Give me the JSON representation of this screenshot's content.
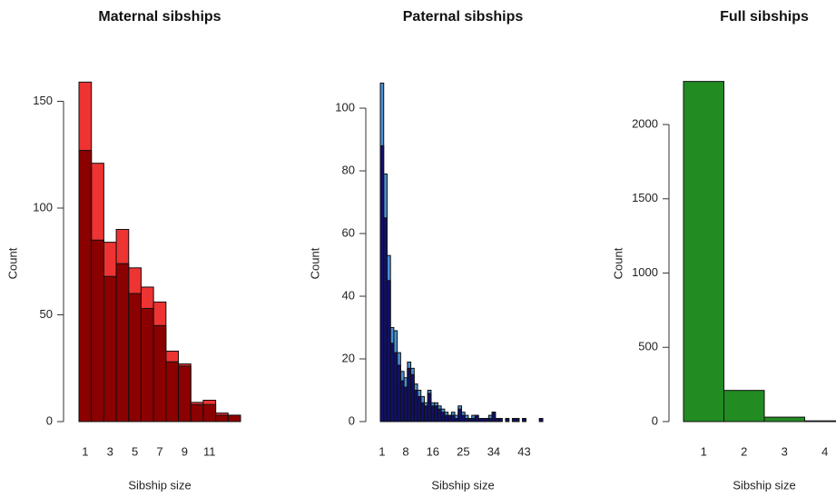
{
  "chart_data": [
    {
      "type": "bar",
      "title": "Maternal sibships",
      "x_label": "Sibship size",
      "y_label": "Count",
      "categories": [
        "1",
        null,
        "3",
        null,
        "5",
        null,
        "7",
        null,
        "9",
        null,
        "11",
        null,
        null
      ],
      "series": [
        {
          "color": "#ee3333",
          "values": [
            159,
            121,
            84,
            90,
            72,
            63,
            56,
            33,
            27,
            9,
            10,
            4,
            3
          ]
        },
        {
          "color": "#8b0000",
          "values": [
            127,
            85,
            68,
            74,
            60,
            53,
            45,
            28,
            26,
            8,
            8,
            3,
            3
          ]
        }
      ],
      "ylim": [
        0,
        160
      ],
      "yticks": [
        0,
        50,
        100,
        150
      ]
    },
    {
      "type": "bar",
      "title": "Paternal sibships",
      "x_label": "Sibship size",
      "y_label": "Count",
      "categories": [
        "1",
        null,
        null,
        null,
        null,
        null,
        null,
        "8",
        null,
        null,
        null,
        null,
        null,
        null,
        null,
        "16",
        null,
        null,
        null,
        null,
        null,
        null,
        null,
        null,
        "25",
        null,
        null,
        null,
        null,
        null,
        null,
        null,
        null,
        "34",
        null,
        null,
        null,
        null,
        null,
        null,
        null,
        null,
        "43",
        null,
        null,
        null,
        null,
        null
      ],
      "series": [
        {
          "color": "#4a90d0",
          "values": [
            108,
            79,
            53,
            30,
            29,
            22,
            16,
            14,
            19,
            17,
            12,
            10,
            8,
            6,
            10,
            6,
            6,
            5,
            4,
            3,
            2,
            3,
            2,
            5,
            3,
            2,
            1,
            2,
            2,
            1,
            1,
            1,
            2,
            3,
            1,
            1,
            0,
            1,
            0,
            1,
            1,
            0,
            1,
            0,
            0,
            0,
            0,
            1
          ]
        },
        {
          "color": "#10106a",
          "values": [
            88,
            65,
            45,
            25,
            22,
            18,
            13,
            11,
            17,
            15,
            10,
            8,
            6,
            5,
            9,
            5,
            5,
            4,
            3,
            2,
            2,
            2,
            1,
            4,
            2,
            1,
            1,
            1,
            2,
            1,
            1,
            1,
            1,
            3,
            1,
            1,
            0,
            1,
            0,
            1,
            1,
            0,
            1,
            0,
            0,
            0,
            0,
            1
          ]
        }
      ],
      "ylim": [
        0,
        109
      ],
      "yticks": [
        0,
        20,
        40,
        60,
        80,
        100
      ]
    },
    {
      "type": "bar",
      "title": "Full sibships",
      "x_label": "Sibship size",
      "y_label": "Count",
      "categories": [
        "1",
        "2",
        "3",
        "4"
      ],
      "series": [
        {
          "color": "#228b22",
          "values": [
            2290,
            210,
            30,
            5
          ]
        }
      ],
      "ylim": [
        0,
        2300
      ],
      "yticks": [
        0,
        500,
        1000,
        1500,
        2000
      ]
    }
  ]
}
